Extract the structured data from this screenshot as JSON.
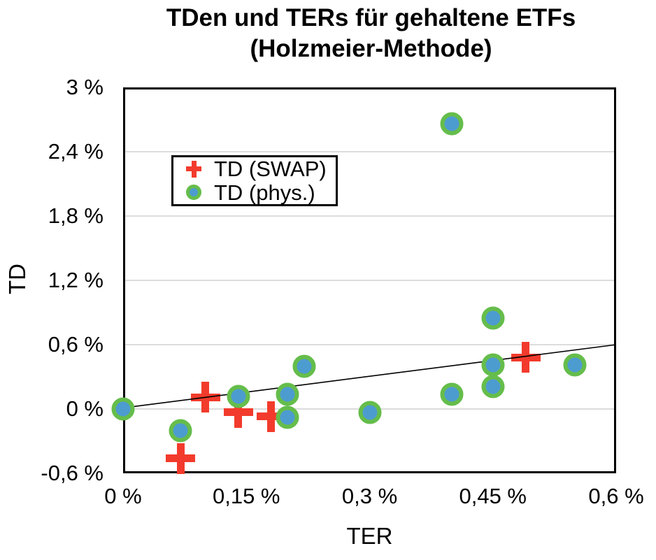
{
  "title": {
    "line1": "TDen und TERs für gehaltene ETFs",
    "line2": "(Holzmeier-Methode)"
  },
  "axes": {
    "x": {
      "label": "TER",
      "ticks": [
        "0 %",
        "0,15 %",
        "0,3 %",
        "0,45 %",
        "0,6 %"
      ],
      "tick_values": [
        0,
        0.15,
        0.3,
        0.45,
        0.6
      ]
    },
    "y": {
      "label": "TD",
      "ticks": [
        "3 %",
        "2,4 %",
        "1,8 %",
        "1,2 %",
        "0,6 %",
        "0 %",
        "-0,6 %"
      ],
      "tick_values": [
        3,
        2.4,
        1.8,
        1.2,
        0.6,
        0,
        -0.6
      ]
    }
  },
  "legend": {
    "items": [
      {
        "label": "TD (SWAP)",
        "marker": "plus"
      },
      {
        "label": "TD (phys.)",
        "marker": "circle"
      }
    ]
  },
  "colors": {
    "swap_red": "#f23b2c",
    "phys_green": "#65bd4b",
    "phys_blue": "#4d9cd0",
    "grid": "#dcdcdc",
    "frame": "#000000"
  },
  "chart_data": {
    "type": "scatter",
    "title": "TDen und TERs für gehaltene ETFs (Holzmeier-Methode)",
    "xlabel": "TER",
    "ylabel": "TD",
    "xlim": [
      0,
      0.6
    ],
    "ylim": [
      -0.6,
      3
    ],
    "x_unit": "%",
    "y_unit": "%",
    "grid": "horizontal-only",
    "legend_position": "upper-left-inside",
    "series": [
      {
        "name": "TD (SWAP)",
        "marker": "plus",
        "points": [
          [
            0.07,
            -0.46
          ],
          [
            0.1,
            0.11
          ],
          [
            0.14,
            -0.03
          ],
          [
            0.18,
            -0.07
          ],
          [
            0.49,
            0.48
          ]
        ]
      },
      {
        "name": "TD (phys.)",
        "marker": "circle",
        "points": [
          [
            0.0,
            0.0
          ],
          [
            0.07,
            -0.2
          ],
          [
            0.14,
            0.12
          ],
          [
            0.2,
            0.14
          ],
          [
            0.2,
            -0.08
          ],
          [
            0.22,
            0.4
          ],
          [
            0.3,
            -0.03
          ],
          [
            0.4,
            0.14
          ],
          [
            0.4,
            2.66
          ],
          [
            0.45,
            0.85
          ],
          [
            0.45,
            0.41
          ],
          [
            0.45,
            0.21
          ],
          [
            0.55,
            0.41
          ]
        ]
      }
    ],
    "trendline": {
      "from": [
        0,
        0.01
      ],
      "to": [
        0.6,
        0.6
      ]
    }
  }
}
